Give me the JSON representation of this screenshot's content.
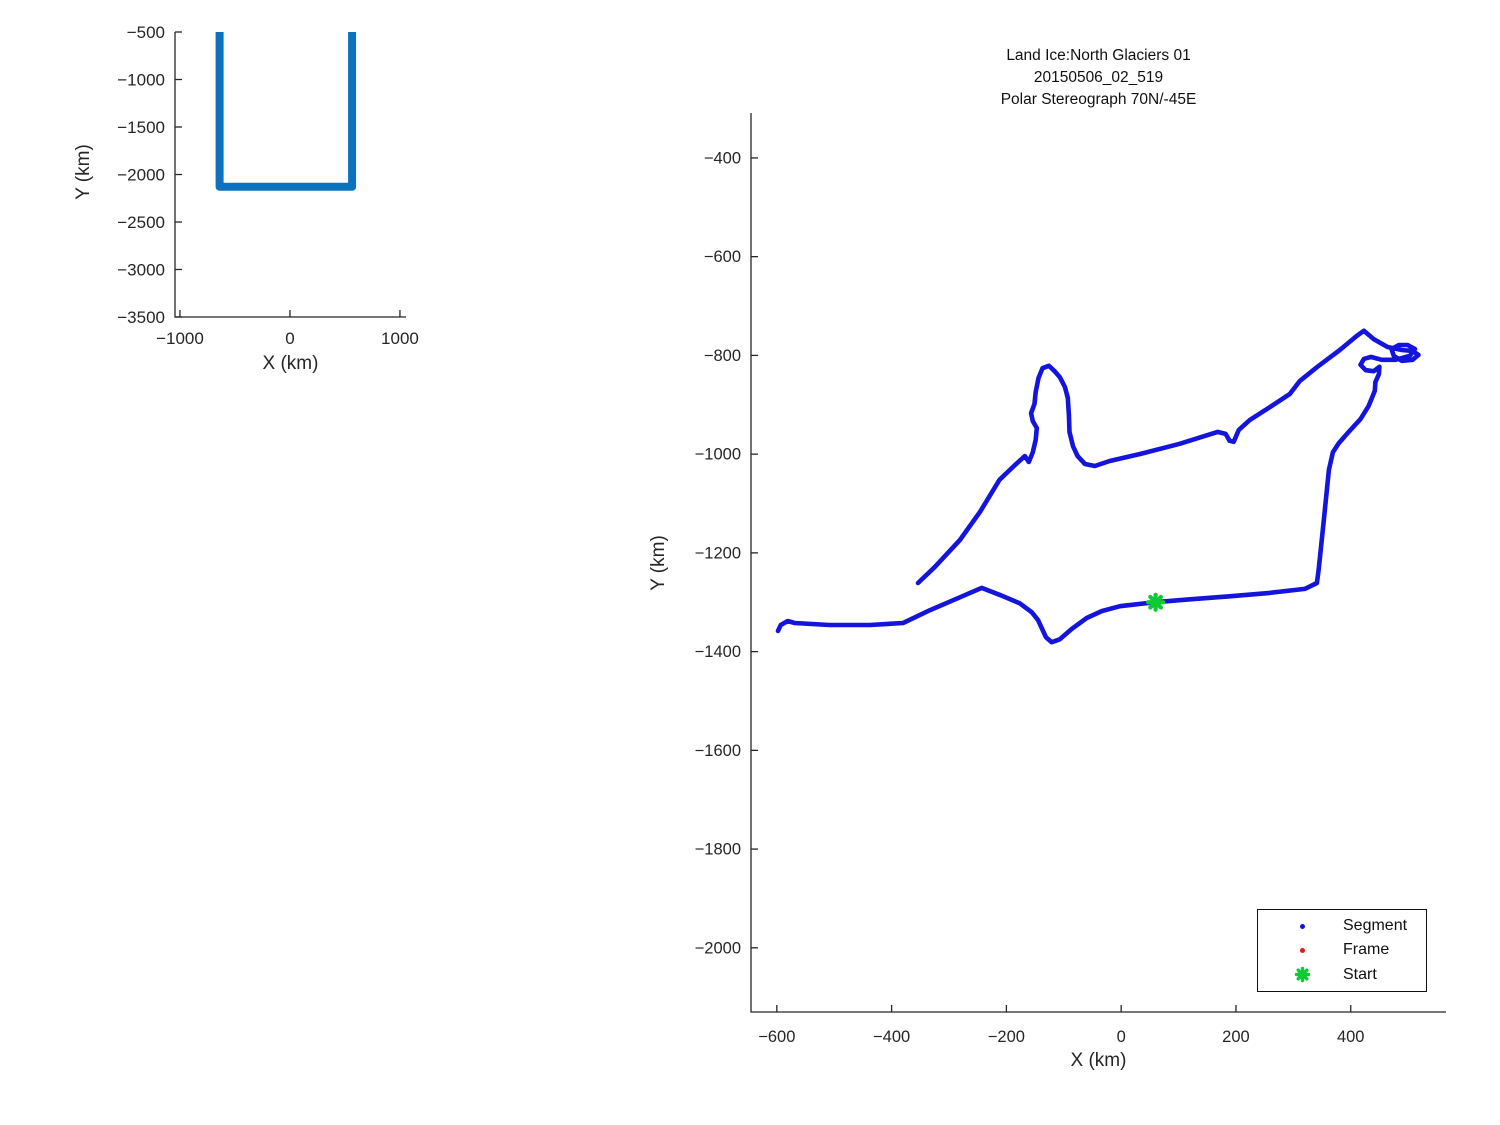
{
  "chart_data": [
    {
      "id": "overview",
      "type": "line",
      "xlabel": "X (km)",
      "ylabel": "Y (km)",
      "xlim": [
        -1045,
        1055
      ],
      "ylim": [
        -3500,
        -500
      ],
      "xticks": [
        -1000,
        0,
        1000
      ],
      "yticks": [
        -500,
        -1000,
        -1500,
        -2000,
        -2500,
        -3000,
        -3500
      ],
      "line_color": "#0d72bd",
      "line_width": 8,
      "track": [
        [
          -640,
          -500
        ],
        [
          -640,
          -2130
        ],
        [
          565,
          -2130
        ],
        [
          565,
          -500
        ]
      ]
    },
    {
      "id": "main",
      "type": "line",
      "title_lines": [
        "Land Ice:North Glaciers 01",
        "20150506_02_519",
        "Polar Stereograph 70N/-45E"
      ],
      "xlabel": "X (km)",
      "ylabel": "Y (km)",
      "xlim": [
        -645,
        566
      ],
      "ylim": [
        -2130,
        -309
      ],
      "xticks": [
        -600,
        -400,
        -200,
        0,
        200,
        400
      ],
      "yticks": [
        -400,
        -600,
        -800,
        -1000,
        -1200,
        -1400,
        -1600,
        -1800,
        -2000
      ],
      "line_color": "#1414dc",
      "line_width": 4.6,
      "start_color": "#0ecb33",
      "start_point": [
        60,
        -1300
      ],
      "track": [
        [
          -354,
          -1261
        ],
        [
          -325,
          -1229
        ],
        [
          -281,
          -1174
        ],
        [
          -246,
          -1117
        ],
        [
          -212,
          -1052
        ],
        [
          -185,
          -1022
        ],
        [
          -168,
          -1004
        ],
        [
          -161,
          -1016
        ],
        [
          -154,
          -996
        ],
        [
          -149,
          -971
        ],
        [
          -147,
          -947
        ],
        [
          -154,
          -933
        ],
        [
          -157,
          -917
        ],
        [
          -151,
          -898
        ],
        [
          -149,
          -874
        ],
        [
          -144,
          -846
        ],
        [
          -137,
          -826
        ],
        [
          -126,
          -821
        ],
        [
          -116,
          -832
        ],
        [
          -107,
          -844
        ],
        [
          -98,
          -864
        ],
        [
          -93,
          -886
        ],
        [
          -91,
          -921
        ],
        [
          -90,
          -955
        ],
        [
          -84,
          -984
        ],
        [
          -76,
          -1004
        ],
        [
          -63,
          -1020
        ],
        [
          -46,
          -1024
        ],
        [
          -20,
          -1014
        ],
        [
          32,
          -1000
        ],
        [
          102,
          -979
        ],
        [
          168,
          -955
        ],
        [
          182,
          -959
        ],
        [
          189,
          -973
        ],
        [
          196,
          -975
        ],
        [
          205,
          -951
        ],
        [
          224,
          -931
        ],
        [
          259,
          -905
        ],
        [
          294,
          -878
        ],
        [
          311,
          -852
        ],
        [
          342,
          -823
        ],
        [
          381,
          -789
        ],
        [
          410,
          -761
        ],
        [
          423,
          -750
        ],
        [
          440,
          -767
        ],
        [
          464,
          -783
        ],
        [
          489,
          -789
        ],
        [
          508,
          -791
        ],
        [
          518,
          -799
        ],
        [
          508,
          -809
        ],
        [
          489,
          -811
        ],
        [
          475,
          -801
        ],
        [
          471,
          -787
        ],
        [
          484,
          -779
        ],
        [
          499,
          -779
        ],
        [
          512,
          -787
        ],
        [
          503,
          -801
        ],
        [
          478,
          -809
        ],
        [
          454,
          -809
        ],
        [
          435,
          -803
        ],
        [
          423,
          -807
        ],
        [
          417,
          -819
        ],
        [
          426,
          -830
        ],
        [
          440,
          -832
        ],
        [
          450,
          -823
        ],
        [
          449,
          -838
        ],
        [
          443,
          -854
        ],
        [
          442,
          -872
        ],
        [
          431,
          -903
        ],
        [
          417,
          -929
        ],
        [
          398,
          -953
        ],
        [
          379,
          -978
        ],
        [
          369,
          -996
        ],
        [
          362,
          -1032
        ],
        [
          353,
          -1134
        ],
        [
          344,
          -1235
        ],
        [
          341,
          -1261
        ],
        [
          320,
          -1273
        ],
        [
          259,
          -1281
        ],
        [
          189,
          -1288
        ],
        [
          120,
          -1294
        ],
        [
          59,
          -1300
        ],
        [
          -2,
          -1308
        ],
        [
          -34,
          -1318
        ],
        [
          -60,
          -1332
        ],
        [
          -86,
          -1354
        ],
        [
          -107,
          -1375
        ],
        [
          -121,
          -1381
        ],
        [
          -131,
          -1371
        ],
        [
          -145,
          -1336
        ],
        [
          -156,
          -1320
        ],
        [
          -177,
          -1302
        ],
        [
          -212,
          -1285
        ],
        [
          -243,
          -1271
        ],
        [
          -281,
          -1290
        ],
        [
          -333,
          -1316
        ],
        [
          -380,
          -1342
        ],
        [
          -438,
          -1346
        ],
        [
          -508,
          -1346
        ],
        [
          -569,
          -1342
        ],
        [
          -581,
          -1338
        ],
        [
          -593,
          -1346
        ],
        [
          -598,
          -1358
        ]
      ]
    }
  ],
  "legend": {
    "items": [
      {
        "label": "Segment",
        "marker": "dot",
        "color": "#1414dc"
      },
      {
        "label": "Frame",
        "marker": "dot",
        "color": "#e11a1a"
      },
      {
        "label": "Start",
        "marker": "asterisk",
        "color": "#0ecb33"
      }
    ]
  }
}
